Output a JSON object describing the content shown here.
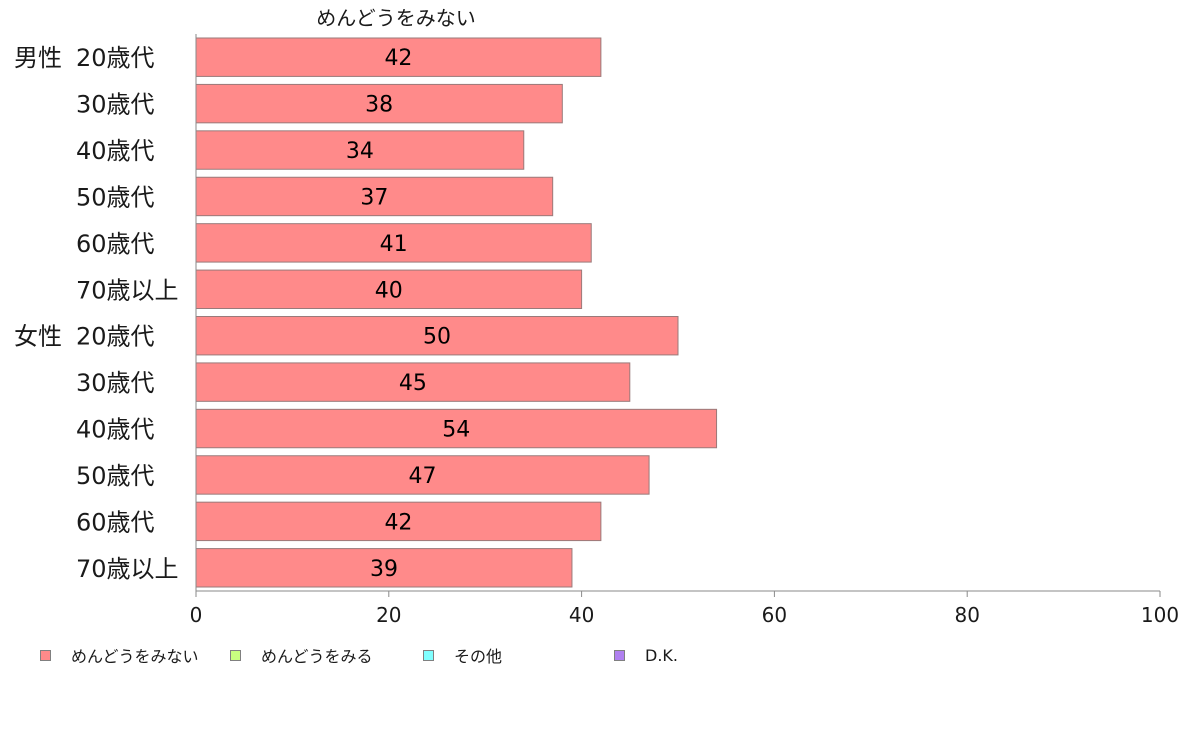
{
  "chart_data": {
    "type": "bar",
    "orientation": "horizontal",
    "title": "めんどうをみない",
    "groups": [
      {
        "label": "男性",
        "row_index": 0
      },
      {
        "label": "女性",
        "row_index": 6
      }
    ],
    "categories": [
      "20歳代",
      "30歳代",
      "40歳代",
      "50歳代",
      "60歳代",
      "70歳以上",
      "20歳代",
      "30歳代",
      "40歳代",
      "50歳代",
      "60歳代",
      "70歳以上"
    ],
    "series": [
      {
        "name": "めんどうをみない",
        "color": "#ff8a8a",
        "values": [
          42,
          38,
          34,
          37,
          41,
          40,
          50,
          45,
          54,
          47,
          42,
          39
        ]
      }
    ],
    "xlim": [
      0,
      100
    ],
    "x_ticks": [
      0,
      20,
      40,
      60,
      80,
      100
    ],
    "grid": false,
    "legend_position": "bottom",
    "legend": [
      {
        "label": "めんどうをみない",
        "color": "#ff8a8a"
      },
      {
        "label": "めんどうをみる",
        "color": "#c8ff80"
      },
      {
        "label": "その他",
        "color": "#80ffff"
      },
      {
        "label": "D.K.",
        "color": "#b080f0"
      }
    ]
  }
}
